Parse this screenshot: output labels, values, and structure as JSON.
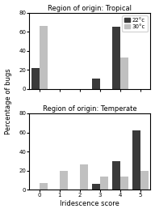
{
  "chart_data": [
    {
      "type": "bar",
      "title": "Region of origin: Tropical",
      "categories": [
        "0",
        "1",
        "2",
        "3",
        "4",
        "5"
      ],
      "series": [
        {
          "name": "22°c",
          "color": "#3a3a3a",
          "values": [
            22,
            0,
            0,
            11,
            65,
            0
          ]
        },
        {
          "name": "30°c",
          "color": "#c0c0c0",
          "values": [
            66,
            0,
            0,
            0,
            33,
            0
          ]
        }
      ],
      "y_label": "Percentage of bugs",
      "ylim": [
        0,
        80
      ],
      "yticks": [
        0,
        20,
        40,
        60,
        80
      ],
      "legend": "upper right",
      "tick_labels": "y"
    },
    {
      "type": "bar",
      "title": "Region of origin: Temperate",
      "categories": [
        "0",
        "1",
        "2",
        "3",
        "4",
        "5"
      ],
      "series": [
        {
          "color": "#3a3a3a",
          "values": [
            0,
            0,
            0,
            6,
            30,
            62
          ]
        },
        {
          "color": "#c0c0c0",
          "values": [
            7,
            20,
            26,
            14,
            14,
            20
          ]
        }
      ],
      "x_label": "Iridescence score",
      "ylim": [
        0,
        80
      ],
      "yticks": [
        0,
        20,
        40,
        60,
        80
      ]
    }
  ]
}
